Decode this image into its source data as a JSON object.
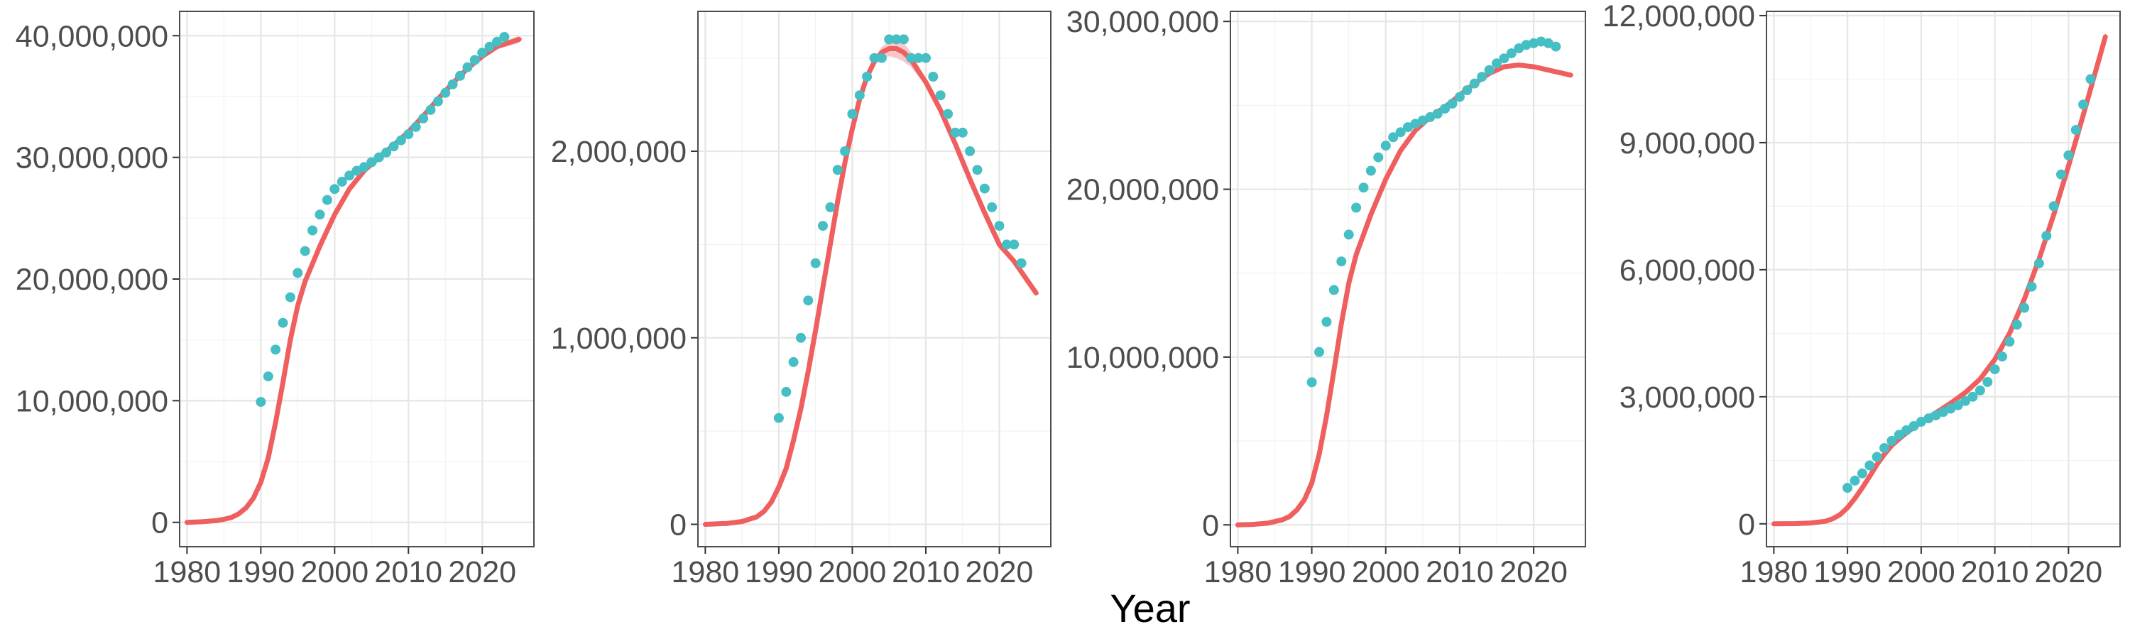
{
  "colors": {
    "fit_line": "#EF5F5F",
    "fit_band": "#F6B7B7",
    "observed_points": "#45BFC3"
  },
  "figure": {
    "xlabel": "Year"
  },
  "chart_data": [
    {
      "type": "line",
      "xlim": [
        1979,
        2027
      ],
      "ylim": [
        -2000000,
        42000000
      ],
      "x_ticks": [
        1980,
        1990,
        2000,
        2010,
        2020
      ],
      "x_tick_labels": [
        "1980",
        "1990",
        "2000",
        "2010",
        "2020"
      ],
      "y_ticks": [
        0,
        10000000,
        20000000,
        30000000,
        40000000
      ],
      "y_tick_labels": [
        "0",
        "10,000,000",
        "20,000,000",
        "30,000,000",
        "40,000,000"
      ],
      "grid": true,
      "series": [
        {
          "kind": "fit",
          "x": [
            1980,
            1982,
            1984,
            1985,
            1986,
            1987,
            1988,
            1989,
            1990,
            1991,
            1992,
            1993,
            1994,
            1995,
            1996,
            1998,
            2000,
            2002,
            2004,
            2006,
            2008,
            2010,
            2012,
            2014,
            2016,
            2018,
            2020,
            2022,
            2025
          ],
          "y": [
            0,
            50000,
            150000,
            250000,
            400000,
            700000,
            1200000,
            2000000,
            3300000,
            5300000,
            8200000,
            11500000,
            15000000,
            17800000,
            19800000,
            22700000,
            25300000,
            27400000,
            28900000,
            30000000,
            31000000,
            32100000,
            33400000,
            34800000,
            36100000,
            37300000,
            38300000,
            39100000,
            39700000
          ],
          "upper": [
            0,
            50000,
            150000,
            250000,
            400000,
            700000,
            1200000,
            2000000,
            3300000,
            5300000,
            8200000,
            11500000,
            15000000,
            17800000,
            19800000,
            22700000,
            25300000,
            27400000,
            28900000,
            30000000,
            31000000,
            32100000,
            33400000,
            34800000,
            36100000,
            37300000,
            38400000,
            39300000,
            40000000
          ],
          "lower": [
            0,
            50000,
            150000,
            250000,
            400000,
            700000,
            1200000,
            2000000,
            3300000,
            5300000,
            8200000,
            11500000,
            15000000,
            17800000,
            19800000,
            22700000,
            25300000,
            27400000,
            28900000,
            30000000,
            31000000,
            32100000,
            33400000,
            34800000,
            36100000,
            37300000,
            38200000,
            38900000,
            39400000
          ]
        },
        {
          "kind": "points",
          "x": [
            1990,
            1991,
            1992,
            1993,
            1994,
            1995,
            1996,
            1997,
            1998,
            1999,
            2000,
            2001,
            2002,
            2003,
            2004,
            2005,
            2006,
            2007,
            2008,
            2009,
            2010,
            2011,
            2012,
            2013,
            2014,
            2015,
            2016,
            2017,
            2018,
            2019,
            2020,
            2021,
            2022,
            2023
          ],
          "y": [
            9900000,
            12000000,
            14200000,
            16400000,
            18500000,
            20500000,
            22300000,
            24000000,
            25300000,
            26500000,
            27400000,
            28000000,
            28500000,
            28900000,
            29200000,
            29600000,
            30000000,
            30400000,
            30900000,
            31400000,
            31900000,
            32500000,
            33200000,
            33900000,
            34600000,
            35300000,
            36000000,
            36700000,
            37400000,
            38000000,
            38600000,
            39100000,
            39500000,
            39900000
          ]
        }
      ]
    },
    {
      "type": "line",
      "xlim": [
        1979,
        2027
      ],
      "ylim": [
        -120000,
        2750000
      ],
      "x_ticks": [
        1980,
        1990,
        2000,
        2010,
        2020
      ],
      "x_tick_labels": [
        "1980",
        "1990",
        "2000",
        "2010",
        "2020"
      ],
      "y_ticks": [
        0,
        1000000,
        2000000
      ],
      "y_tick_labels": [
        "0",
        "1,000,000",
        "2,000,000"
      ],
      "grid": true,
      "series": [
        {
          "kind": "fit",
          "x": [
            1980,
            1983,
            1985,
            1987,
            1988,
            1989,
            1990,
            1991,
            1992,
            1993,
            1994,
            1995,
            1996,
            1997,
            1998,
            1999,
            2000,
            2001,
            2002,
            2003,
            2004,
            2005,
            2006,
            2007,
            2008,
            2009,
            2010,
            2012,
            2014,
            2016,
            2018,
            2020,
            2022,
            2025
          ],
          "y": [
            0,
            5000,
            15000,
            40000,
            70000,
            120000,
            200000,
            300000,
            450000,
            620000,
            820000,
            1040000,
            1270000,
            1500000,
            1730000,
            1940000,
            2120000,
            2280000,
            2400000,
            2480000,
            2530000,
            2550000,
            2550000,
            2530000,
            2490000,
            2430000,
            2370000,
            2220000,
            2040000,
            1850000,
            1670000,
            1500000,
            1410000,
            1240000
          ],
          "upper": [
            0,
            5000,
            15000,
            40000,
            70000,
            120000,
            200000,
            300000,
            450000,
            620000,
            820000,
            1040000,
            1270000,
            1500000,
            1730000,
            1940000,
            2120000,
            2280000,
            2410000,
            2500000,
            2560000,
            2590000,
            2600000,
            2580000,
            2530000,
            2460000,
            2390000,
            2230000,
            2050000,
            1860000,
            1680000,
            1510000,
            1420000,
            1250000
          ],
          "lower": [
            0,
            5000,
            15000,
            40000,
            70000,
            120000,
            200000,
            300000,
            450000,
            620000,
            820000,
            1040000,
            1270000,
            1500000,
            1730000,
            1940000,
            2120000,
            2280000,
            2390000,
            2460000,
            2500000,
            2510000,
            2500000,
            2480000,
            2450000,
            2400000,
            2350000,
            2210000,
            2030000,
            1840000,
            1660000,
            1490000,
            1400000,
            1230000
          ]
        },
        {
          "kind": "points",
          "x": [
            1990,
            1991,
            1992,
            1993,
            1994,
            1995,
            1996,
            1997,
            1998,
            1999,
            2000,
            2001,
            2002,
            2003,
            2004,
            2005,
            2006,
            2007,
            2008,
            2009,
            2010,
            2011,
            2012,
            2013,
            2014,
            2015,
            2016,
            2017,
            2018,
            2019,
            2020,
            2021,
            2022,
            2023
          ],
          "y": [
            570000,
            710000,
            870000,
            1000000,
            1200000,
            1400000,
            1600000,
            1700000,
            1900000,
            2000000,
            2200000,
            2300000,
            2400000,
            2500000,
            2500000,
            2600000,
            2600000,
            2600000,
            2500000,
            2500000,
            2500000,
            2400000,
            2300000,
            2200000,
            2100000,
            2100000,
            2000000,
            1900000,
            1800000,
            1700000,
            1600000,
            1500000,
            1500000,
            1400000
          ]
        }
      ]
    },
    {
      "type": "line",
      "xlim": [
        1979,
        2027
      ],
      "ylim": [
        -1300000,
        30600000
      ],
      "x_ticks": [
        1980,
        1990,
        2000,
        2010,
        2020
      ],
      "x_tick_labels": [
        "1980",
        "1990",
        "2000",
        "2010",
        "2020"
      ],
      "y_ticks": [
        0,
        10000000,
        20000000,
        30000000
      ],
      "y_tick_labels": [
        "0",
        "10,000,000",
        "20,000,000",
        "30,000,000"
      ],
      "grid": true,
      "series": [
        {
          "kind": "fit",
          "x": [
            1980,
            1982,
            1984,
            1986,
            1987,
            1988,
            1989,
            1990,
            1991,
            1992,
            1993,
            1994,
            1995,
            1996,
            1998,
            2000,
            2002,
            2004,
            2006,
            2008,
            2010,
            2012,
            2014,
            2016,
            2018,
            2020,
            2022,
            2025
          ],
          "y": [
            0,
            30000,
            100000,
            300000,
            500000,
            900000,
            1500000,
            2500000,
            4200000,
            6500000,
            9200000,
            12000000,
            14400000,
            16100000,
            18500000,
            20600000,
            22300000,
            23500000,
            24300000,
            24900000,
            25600000,
            26300000,
            26900000,
            27300000,
            27400000,
            27300000,
            27100000,
            26800000
          ],
          "upper": [
            0,
            30000,
            100000,
            300000,
            500000,
            900000,
            1500000,
            2500000,
            4200000,
            6500000,
            9200000,
            12000000,
            14400000,
            16100000,
            18500000,
            20600000,
            22300000,
            23500000,
            24300000,
            24900000,
            25600000,
            26300000,
            27000000,
            27400000,
            27500000,
            27400000,
            27200000,
            26950000
          ],
          "lower": [
            0,
            30000,
            100000,
            300000,
            500000,
            900000,
            1500000,
            2500000,
            4200000,
            6500000,
            9200000,
            12000000,
            14400000,
            16100000,
            18500000,
            20600000,
            22300000,
            23500000,
            24300000,
            24900000,
            25600000,
            26300000,
            26800000,
            27200000,
            27300000,
            27200000,
            27000000,
            26650000
          ]
        },
        {
          "kind": "points",
          "x": [
            1990,
            1991,
            1992,
            1993,
            1994,
            1995,
            1996,
            1997,
            1998,
            1999,
            2000,
            2001,
            2002,
            2003,
            2004,
            2005,
            2006,
            2007,
            2008,
            2009,
            2010,
            2011,
            2012,
            2013,
            2014,
            2015,
            2016,
            2017,
            2018,
            2019,
            2020,
            2021,
            2022,
            2023
          ],
          "y": [
            8500000,
            10300000,
            12100000,
            14000000,
            15700000,
            17300000,
            18900000,
            20100000,
            21100000,
            21900000,
            22600000,
            23100000,
            23400000,
            23700000,
            23900000,
            24100000,
            24300000,
            24500000,
            24800000,
            25100000,
            25500000,
            25900000,
            26300000,
            26700000,
            27100000,
            27500000,
            27800000,
            28100000,
            28400000,
            28600000,
            28700000,
            28800000,
            28700000,
            28500000
          ]
        }
      ]
    },
    {
      "type": "line",
      "xlim": [
        1979,
        2027
      ],
      "ylim": [
        -540000,
        12100000
      ],
      "x_ticks": [
        1980,
        1990,
        2000,
        2010,
        2020
      ],
      "x_tick_labels": [
        "1980",
        "1990",
        "2000",
        "2010",
        "2020"
      ],
      "y_ticks": [
        0,
        3000000,
        6000000,
        9000000,
        12000000
      ],
      "y_tick_labels": [
        "0",
        "3,000,000",
        "6,000,000",
        "9,000,000",
        "12,000,000"
      ],
      "grid": true,
      "series": [
        {
          "kind": "fit",
          "x": [
            1980,
            1983,
            1985,
            1987,
            1988,
            1989,
            1990,
            1991,
            1992,
            1993,
            1994,
            1995,
            1996,
            1998,
            2000,
            2002,
            2004,
            2006,
            2008,
            2010,
            2012,
            2014,
            2016,
            2018,
            2020,
            2022,
            2025
          ],
          "y": [
            0,
            5000,
            20000,
            60000,
            120000,
            220000,
            380000,
            600000,
            850000,
            1120000,
            1400000,
            1640000,
            1850000,
            2150000,
            2400000,
            2620000,
            2850000,
            3100000,
            3420000,
            3880000,
            4500000,
            5300000,
            6250000,
            7300000,
            8450000,
            9650000,
            11500000
          ],
          "upper": [
            0,
            5000,
            20000,
            60000,
            120000,
            220000,
            380000,
            600000,
            850000,
            1120000,
            1430000,
            1690000,
            1890000,
            2180000,
            2430000,
            2650000,
            2880000,
            3130000,
            3450000,
            3910000,
            4530000,
            5330000,
            6280000,
            7330000,
            8480000,
            9700000,
            11600000
          ],
          "lower": [
            0,
            5000,
            20000,
            60000,
            120000,
            220000,
            380000,
            600000,
            850000,
            1120000,
            1370000,
            1590000,
            1810000,
            2120000,
            2370000,
            2590000,
            2820000,
            3070000,
            3390000,
            3850000,
            4470000,
            5270000,
            6220000,
            7270000,
            8420000,
            9600000,
            11400000
          ]
        },
        {
          "kind": "points",
          "x": [
            1990,
            1991,
            1992,
            1993,
            1994,
            1995,
            1996,
            1997,
            1998,
            1999,
            2000,
            2001,
            2002,
            2003,
            2004,
            2005,
            2006,
            2007,
            2008,
            2009,
            2010,
            2011,
            2012,
            2013,
            2014,
            2015,
            2016,
            2017,
            2018,
            2019,
            2020,
            2021,
            2022,
            2023
          ],
          "y": [
            850000,
            1020000,
            1190000,
            1380000,
            1580000,
            1790000,
            1960000,
            2100000,
            2210000,
            2310000,
            2410000,
            2490000,
            2560000,
            2640000,
            2720000,
            2800000,
            2900000,
            3000000,
            3150000,
            3350000,
            3650000,
            3950000,
            4300000,
            4700000,
            5100000,
            5600000,
            6150000,
            6800000,
            7500000,
            8250000,
            8700000,
            9300000,
            9900000,
            10500000
          ]
        }
      ]
    }
  ]
}
